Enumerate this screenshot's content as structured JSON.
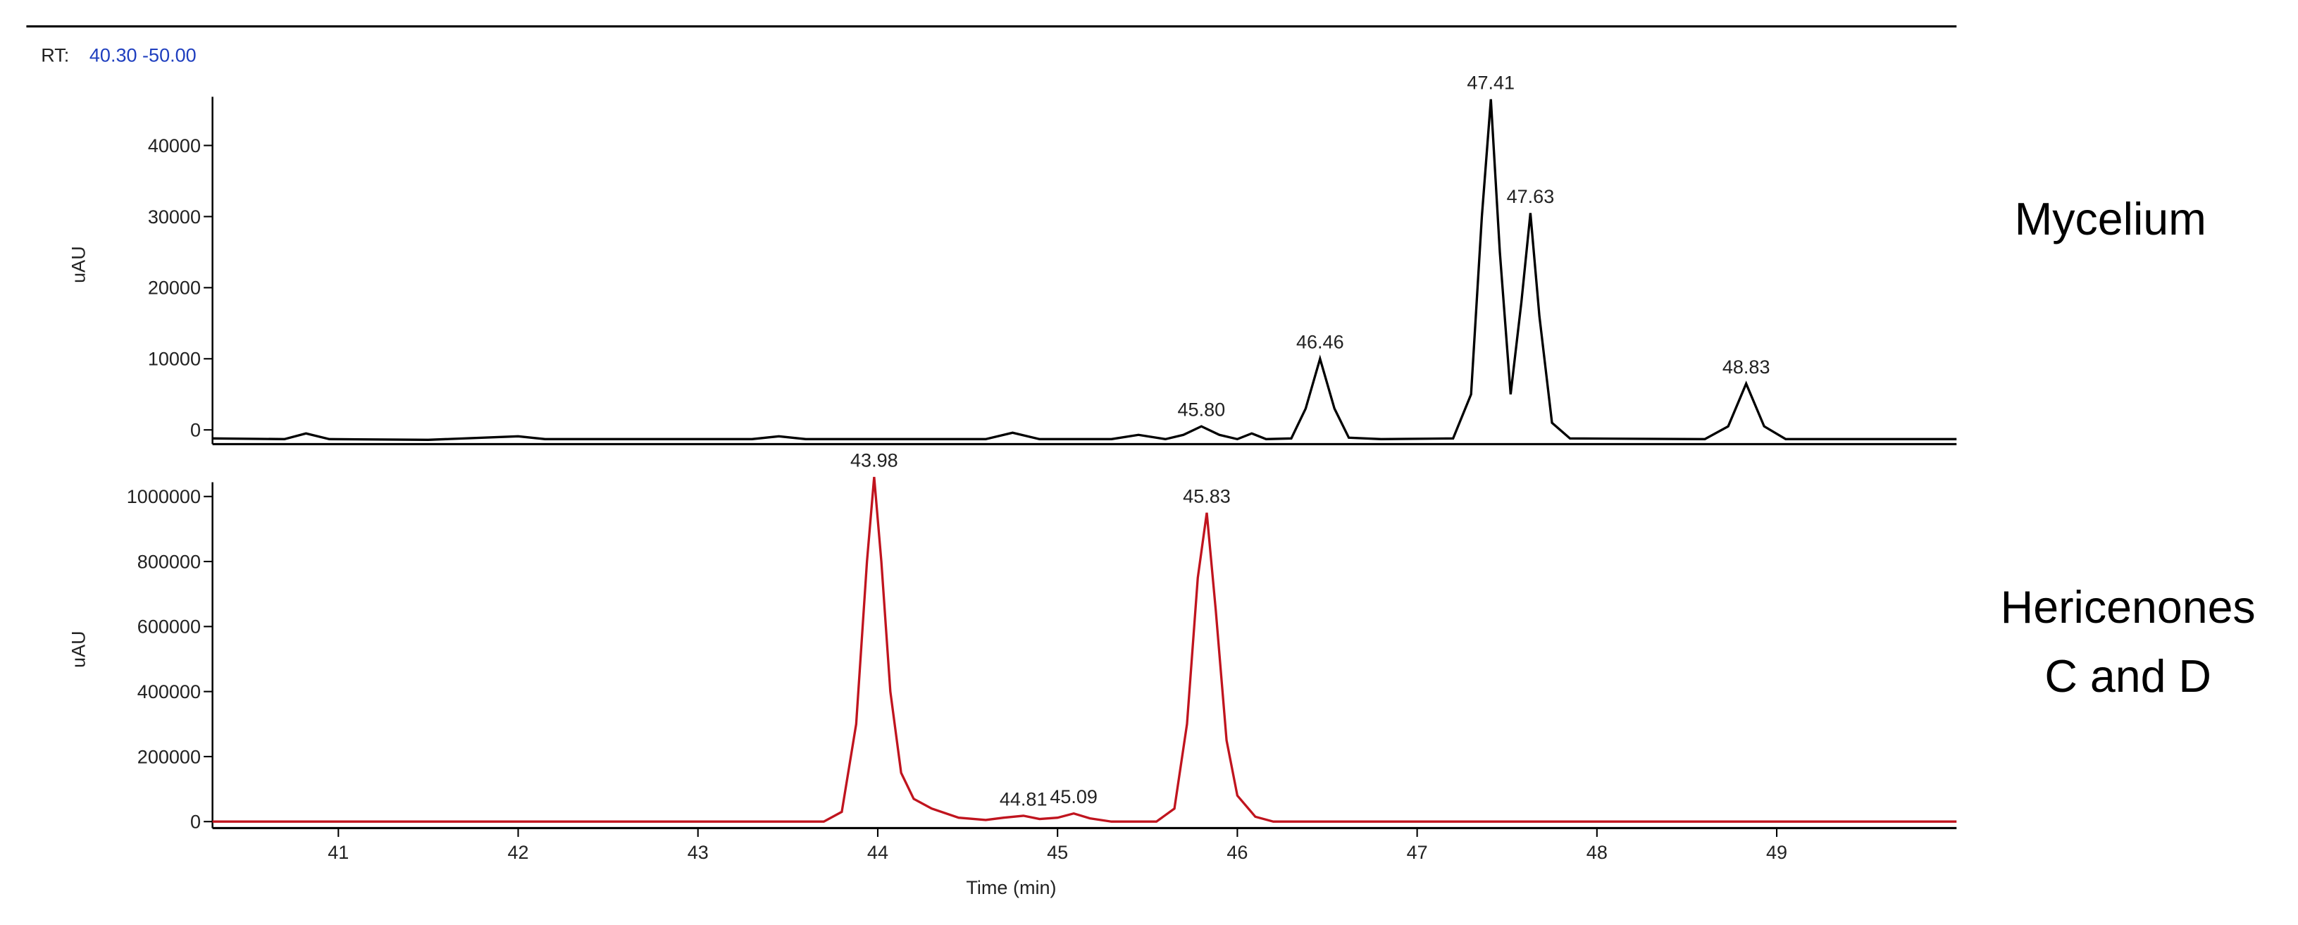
{
  "rt_label": "RT:",
  "rt_range": "40.30 -50.00",
  "chart_data": [
    {
      "type": "line",
      "side_label": [
        "Mycelium"
      ],
      "ylabel": "uAU",
      "color": "#000000",
      "xlim": [
        40.3,
        50.0
      ],
      "ylim": [
        -2000,
        48500
      ],
      "yticks": [
        0,
        10000,
        20000,
        30000,
        40000
      ],
      "x": [
        40.3,
        40.7,
        40.82,
        40.95,
        41.5,
        42.0,
        42.15,
        43.3,
        43.45,
        43.6,
        44.6,
        44.75,
        44.9,
        45.3,
        45.45,
        45.6,
        45.7,
        45.8,
        45.9,
        46.0,
        46.08,
        46.16,
        46.3,
        46.38,
        46.46,
        46.54,
        46.62,
        46.8,
        47.2,
        47.3,
        47.36,
        47.41,
        47.46,
        47.52,
        47.58,
        47.63,
        47.68,
        47.75,
        47.85,
        48.6,
        48.73,
        48.83,
        48.93,
        49.05,
        50.0
      ],
      "values": [
        -1200,
        -1300,
        -500,
        -1300,
        -1400,
        -900,
        -1300,
        -1300,
        -900,
        -1300,
        -1300,
        -400,
        -1300,
        -1300,
        -700,
        -1300,
        -700,
        500,
        -700,
        -1300,
        -500,
        -1300,
        -1200,
        3000,
        10000,
        3000,
        -1100,
        -1300,
        -1200,
        5000,
        30000,
        46500,
        25000,
        5000,
        18000,
        30500,
        16000,
        1000,
        -1200,
        -1300,
        500,
        6500,
        500,
        -1300,
        -1300
      ],
      "peaks": {
        "x": [
          45.8,
          46.46,
          47.41,
          47.63,
          48.83
        ],
        "y": [
          500,
          10000,
          46500,
          30500,
          6500
        ],
        "value_labels": [
          "45.80",
          "46.46",
          "47.41",
          "47.63",
          "48.83"
        ]
      }
    },
    {
      "type": "line",
      "side_label": [
        "Hericenones",
        "C and D"
      ],
      "ylabel": "uAU",
      "xlabel": "Time (min)",
      "color": "#c0141e",
      "xlim": [
        40.3,
        50.0
      ],
      "xticks": [
        41,
        42,
        43,
        44,
        45,
        46,
        47,
        48,
        49
      ],
      "ylim": [
        -20000,
        1080000
      ],
      "yticks": [
        0,
        200000,
        400000,
        600000,
        800000,
        1000000
      ],
      "x": [
        40.3,
        43.7,
        43.8,
        43.88,
        43.94,
        43.98,
        44.02,
        44.07,
        44.13,
        44.2,
        44.3,
        44.45,
        44.6,
        44.7,
        44.81,
        44.9,
        45.0,
        45.09,
        45.18,
        45.3,
        45.55,
        45.65,
        45.72,
        45.78,
        45.83,
        45.88,
        45.94,
        46.0,
        46.1,
        46.2,
        50.0
      ],
      "values": [
        0,
        0,
        30000,
        300000,
        800000,
        1060000,
        800000,
        400000,
        150000,
        70000,
        40000,
        12000,
        5000,
        12000,
        18000,
        8000,
        12000,
        25000,
        10000,
        0,
        0,
        40000,
        300000,
        750000,
        950000,
        650000,
        250000,
        80000,
        15000,
        0,
        0
      ],
      "peaks": {
        "x": [
          43.98,
          44.81,
          45.09,
          45.83
        ],
        "y": [
          1060000,
          18000,
          25000,
          950000
        ],
        "value_labels": [
          "43.98",
          "44.81",
          "45.09",
          "45.83"
        ]
      }
    }
  ]
}
